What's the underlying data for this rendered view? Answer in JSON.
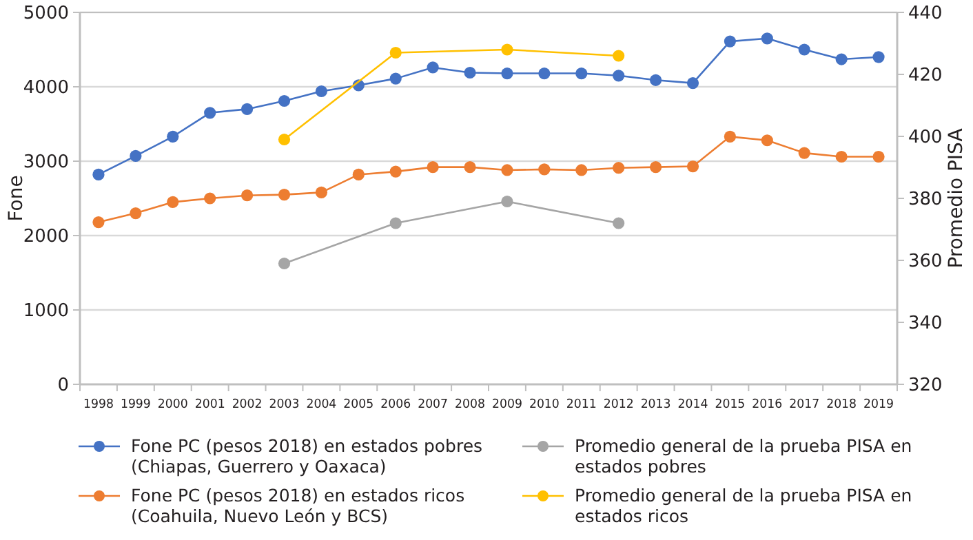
{
  "chart_data": {
    "type": "line",
    "ylabel": "Fone",
    "y2label": "Promedio PISA",
    "categories": [
      "1998",
      "1999",
      "2000",
      "2001",
      "2002",
      "2003",
      "2004",
      "2005",
      "2006",
      "2007",
      "2008",
      "2009",
      "2010",
      "2011",
      "2012",
      "2013",
      "2014",
      "2015",
      "2016",
      "2017",
      "2018",
      "2019"
    ],
    "series": [
      {
        "name": "Fone PC (pesos 2018) en estados pobres (Chiapas, Guerrero y Oaxaca)",
        "color": "#4472c4",
        "values": [
          2820,
          3070,
          3330,
          3650,
          3700,
          3810,
          3940,
          4020,
          4110,
          4260,
          4190,
          4180,
          4180,
          4180,
          4150,
          4090,
          4050,
          4610,
          4650,
          4500,
          4370,
          4400
        ]
      },
      {
        "name": "Fone PC (pesos 2018) en estados ricos (Coahuila, Nuevo León y BCS)",
        "color": "#ed7d31",
        "values": [
          2180,
          2300,
          2450,
          2500,
          2540,
          2550,
          2580,
          2820,
          2860,
          2920,
          2920,
          2880,
          2890,
          2880,
          2910,
          2920,
          2930,
          3330,
          3280,
          3110,
          3060,
          3060
        ]
      },
      {
        "name": "Promedio general de la prueba PISA en estados pobres",
        "color": "#a5a5a5",
        "axis": "y2",
        "values": [
          null,
          null,
          null,
          null,
          null,
          359,
          null,
          null,
          372,
          null,
          null,
          379,
          null,
          null,
          372,
          null,
          null,
          null,
          null,
          null,
          null,
          null
        ]
      },
      {
        "name": "Promedio general de la prueba PISA en estados ricos",
        "color": "#ffc000",
        "axis": "y2",
        "values": [
          null,
          null,
          null,
          null,
          null,
          399,
          null,
          null,
          427,
          null,
          null,
          428,
          null,
          null,
          426,
          null,
          null,
          null,
          null,
          null,
          null,
          null
        ]
      }
    ],
    "ylim": [
      0,
      5000
    ],
    "yticks": [
      0,
      1000,
      2000,
      3000,
      4000,
      5000
    ],
    "y2lim": [
      320,
      440
    ],
    "y2ticks": [
      320,
      340,
      360,
      380,
      400,
      420,
      440
    ],
    "grid": "y",
    "legend": "bottom",
    "marker": "circle",
    "line_style": "solid"
  }
}
